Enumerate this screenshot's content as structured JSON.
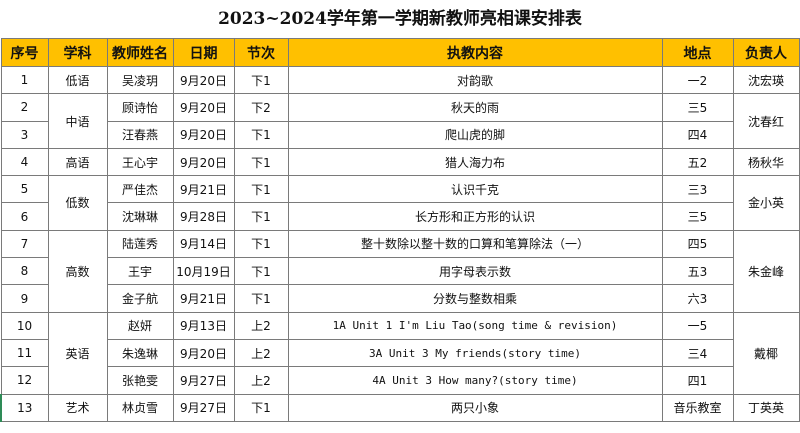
{
  "title": "2023~2024学年第一学期新教师亮相课安排表",
  "headers": {
    "seq": "序号",
    "subject": "学科",
    "teacher": "教师姓名",
    "date": "日期",
    "period": "节次",
    "content": "执教内容",
    "location": "地点",
    "owner": "负责人"
  },
  "rows": [
    {
      "seq": "1",
      "teacher": "吴凌玥",
      "date": "9月20日",
      "period": "下1",
      "content": "对韵歌",
      "location": "一2"
    },
    {
      "seq": "2",
      "teacher": "顾诗怡",
      "date": "9月20日",
      "period": "下2",
      "content": "秋天的雨",
      "location": "三5"
    },
    {
      "seq": "3",
      "teacher": "汪春燕",
      "date": "9月20日",
      "period": "下1",
      "content": "爬山虎的脚",
      "location": "四4"
    },
    {
      "seq": "4",
      "teacher": "王心宇",
      "date": "9月20日",
      "period": "下1",
      "content": "猎人海力布",
      "location": "五2"
    },
    {
      "seq": "5",
      "teacher": "严佳杰",
      "date": "9月21日",
      "period": "下1",
      "content": "认识千克",
      "location": "三3"
    },
    {
      "seq": "6",
      "teacher": "沈琳琳",
      "date": "9月28日",
      "period": "下1",
      "content": "长方形和正方形的认识",
      "location": "三5"
    },
    {
      "seq": "7",
      "teacher": "陆莲秀",
      "date": "9月14日",
      "period": "下1",
      "content": "整十数除以整十数的口算和笔算除法（一）",
      "location": "四5"
    },
    {
      "seq": "8",
      "teacher": "王宇",
      "date": "10月19日",
      "period": "下1",
      "content": "用字母表示数",
      "location": "五3"
    },
    {
      "seq": "9",
      "teacher": "金子航",
      "date": "9月21日",
      "period": "下1",
      "content": "分数与整数相乘",
      "location": "六3"
    },
    {
      "seq": "10",
      "teacher": "赵妍",
      "date": "9月13日",
      "period": "上2",
      "content": "1A Unit 1 I'm Liu Tao(song time & revision)",
      "location": "一5"
    },
    {
      "seq": "11",
      "teacher": "朱逸琳",
      "date": "9月20日",
      "period": "上2",
      "content": "3A Unit 3 My friends(story time)",
      "location": "三4"
    },
    {
      "seq": "12",
      "teacher": "张艳雯",
      "date": "9月27日",
      "period": "上2",
      "content": "4A Unit 3 How many?(story time)",
      "location": "四1"
    },
    {
      "seq": "13",
      "teacher": "林贞雪",
      "date": "9月27日",
      "period": "下1",
      "content": "两只小象",
      "location": "音乐教室"
    }
  ],
  "subjects": {
    "low_chinese": "低语",
    "mid_chinese": "中语",
    "high_chinese": "高语",
    "low_math": "低数",
    "high_math": "高数",
    "english": "英语",
    "art": "艺术"
  },
  "owners": {
    "o1": "沈宏瑛",
    "o2": "沈春红",
    "o3": "杨秋华",
    "o4": "金小英",
    "o5": "朱金峰",
    "o6": "戴椰",
    "o7": "丁英英"
  },
  "colors": {
    "header_bg": "#ffc000",
    "grid_line": "#7a7a7a",
    "row13_marker": "#2e8b57"
  }
}
